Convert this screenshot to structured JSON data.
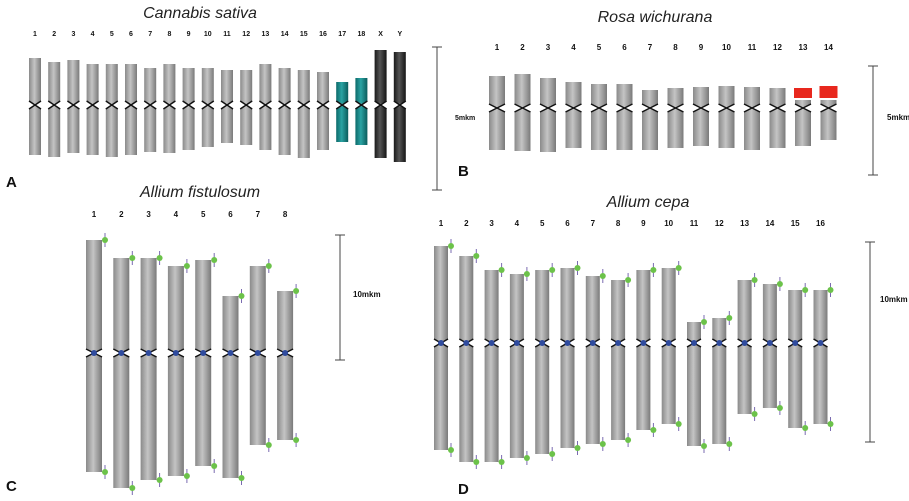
{
  "panels": [
    {
      "letter": "A",
      "title": "Cannabis sativa",
      "labels": [
        "1",
        "2",
        "3",
        "4",
        "5",
        "6",
        "7",
        "8",
        "9",
        "10",
        "11",
        "12",
        "13",
        "14",
        "15",
        "16",
        "17",
        "18",
        "X",
        "Y"
      ],
      "scale": "5mkm"
    },
    {
      "letter": "B",
      "title": "Rosa wichurana",
      "labels": [
        "1",
        "2",
        "3",
        "4",
        "5",
        "6",
        "7",
        "8",
        "9",
        "10",
        "11",
        "12",
        "13",
        "14"
      ],
      "scale": "5mkm"
    },
    {
      "letter": "C",
      "title": "Allium fistulosum",
      "labels": [
        "1",
        "2",
        "3",
        "4",
        "5",
        "6",
        "7",
        "8"
      ],
      "scale": "10mkm"
    },
    {
      "letter": "D",
      "title": "Allium cepa",
      "labels": [
        "1",
        "2",
        "3",
        "4",
        "5",
        "6",
        "7",
        "8",
        "9",
        "10",
        "11",
        "12",
        "13",
        "14",
        "15",
        "16"
      ],
      "scale": "10mkm"
    }
  ]
}
